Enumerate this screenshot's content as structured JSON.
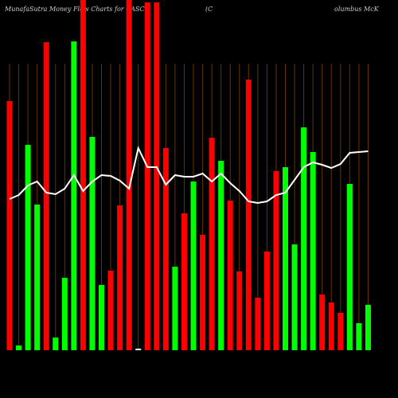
{
  "chart_data": {
    "type": "bar",
    "title": "MunafaSutra  Money Flow  Charts for CASCO",
    "subtitle": "(C",
    "subtitle2": "olumbus McK",
    "ylim": [
      0,
      440
    ],
    "values": [
      313,
      6,
      258,
      183,
      387,
      16,
      91,
      388,
      440,
      268,
      82,
      100,
      182,
      440,
      2,
      437,
      437,
      254,
      105,
      172,
      212,
      145,
      267,
      238,
      188,
      99,
      340,
      66,
      124,
      225,
      230,
      133,
      280,
      249,
      70,
      60,
      47,
      209,
      34,
      57
    ],
    "colors": [
      "#ff0000",
      "#00ff00",
      "#00ff00",
      "#00ff00",
      "#ff0000",
      "#00ff00",
      "#00ff00",
      "#00ff00",
      "#ff0000",
      "#00ff00",
      "#00ff00",
      "#ff0000",
      "#ff0000",
      "#ff0000",
      "#ffffff",
      "#ff0000",
      "#ff0000",
      "#ff0000",
      "#00ff00",
      "#ff0000",
      "#00ff00",
      "#ff0000",
      "#ff0000",
      "#00ff00",
      "#ff0000",
      "#ff0000",
      "#ff0000",
      "#ff0000",
      "#ff0000",
      "#ff0000",
      "#00ff00",
      "#00ff00",
      "#00ff00",
      "#00ff00",
      "#ff0000",
      "#ff0000",
      "#ff0000",
      "#00ff00",
      "#00ff00",
      "#00ff00"
    ],
    "line": {
      "color": "#ffffff",
      "values": [
        190,
        195,
        207,
        212,
        198,
        196,
        203,
        220,
        200,
        212,
        220,
        219,
        213,
        203,
        254,
        230,
        230,
        208,
        220,
        218,
        218,
        222,
        212,
        222,
        210,
        200,
        187,
        185,
        187,
        195,
        198,
        214,
        230,
        236,
        233,
        229,
        234,
        248,
        249,
        250
      ]
    },
    "grid_color": "#663300"
  }
}
